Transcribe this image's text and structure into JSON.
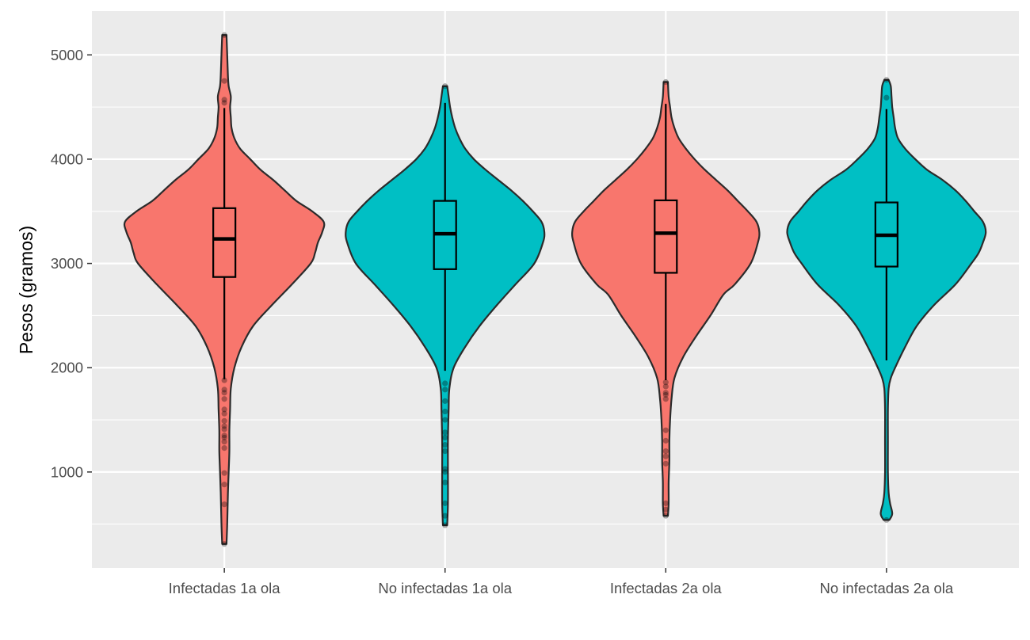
{
  "chart_data": {
    "type": "violin",
    "title": "",
    "xlabel": "",
    "ylabel": "Pesos (gramos)",
    "ylim": [
      80,
      5420
    ],
    "y_ticks": [
      1000,
      2000,
      3000,
      4000,
      5000
    ],
    "grid": true,
    "legend": "none",
    "colors": {
      "infected": "#F8766D",
      "not_infected": "#00BFC4",
      "panel": "#EBEBEB",
      "grid": "#FFFFFF"
    },
    "categories": [
      "Infectadas 1a ola",
      "No infectadas 1a ola",
      "Infectadas 2a ola",
      "No infectadas 2a ola"
    ],
    "groups": [
      {
        "name": "Infectadas 1a ola",
        "color": "#F8766D",
        "min": 310,
        "max": 5190,
        "box": {
          "q1": 2870,
          "median": 3235,
          "q3": 3530,
          "whisker_low": 1890,
          "whisker_high": 4490
        },
        "density": [
          [
            310,
            3
          ],
          [
            500,
            4
          ],
          [
            800,
            5
          ],
          [
            1000,
            6
          ],
          [
            1200,
            7
          ],
          [
            1400,
            7
          ],
          [
            1600,
            8
          ],
          [
            1800,
            9
          ],
          [
            2000,
            14
          ],
          [
            2200,
            24
          ],
          [
            2400,
            40
          ],
          [
            2600,
            66
          ],
          [
            2800,
            94
          ],
          [
            3000,
            120
          ],
          [
            3100,
            126
          ],
          [
            3200,
            130
          ],
          [
            3300,
            136
          ],
          [
            3400,
            138
          ],
          [
            3500,
            122
          ],
          [
            3600,
            100
          ],
          [
            3700,
            84
          ],
          [
            3800,
            68
          ],
          [
            3900,
            50
          ],
          [
            4000,
            36
          ],
          [
            4100,
            22
          ],
          [
            4200,
            14
          ],
          [
            4300,
            10
          ],
          [
            4400,
            9
          ],
          [
            4500,
            8
          ],
          [
            4600,
            9
          ],
          [
            4700,
            6
          ],
          [
            4800,
            5
          ],
          [
            5000,
            4
          ],
          [
            5190,
            3
          ]
        ],
        "outliers": [
          310,
          690,
          880,
          990,
          1230,
          1290,
          1330,
          1350,
          1410,
          1440,
          1490,
          1560,
          1600,
          1700,
          1760,
          1790,
          1880,
          4540,
          4570,
          4750,
          5190
        ]
      },
      {
        "name": "No infectadas 1a ola",
        "color": "#00BFC4",
        "min": 490,
        "max": 4700,
        "box": {
          "q1": 2945,
          "median": 3285,
          "q3": 3600,
          "whisker_low": 1970,
          "whisker_high": 4540
        },
        "density": [
          [
            490,
            3
          ],
          [
            700,
            4
          ],
          [
            1000,
            4
          ],
          [
            1300,
            4
          ],
          [
            1600,
            5
          ],
          [
            1800,
            6
          ],
          [
            2000,
            12
          ],
          [
            2200,
            28
          ],
          [
            2400,
            48
          ],
          [
            2600,
            72
          ],
          [
            2800,
            98
          ],
          [
            3000,
            124
          ],
          [
            3200,
            136
          ],
          [
            3300,
            138
          ],
          [
            3400,
            134
          ],
          [
            3500,
            122
          ],
          [
            3600,
            108
          ],
          [
            3700,
            92
          ],
          [
            3800,
            74
          ],
          [
            3900,
            56
          ],
          [
            4000,
            40
          ],
          [
            4100,
            28
          ],
          [
            4200,
            20
          ],
          [
            4300,
            14
          ],
          [
            4400,
            10
          ],
          [
            4500,
            7
          ],
          [
            4600,
            5
          ],
          [
            4700,
            3
          ]
        ],
        "outliers": [
          490,
          580,
          700,
          900,
          1000,
          1030,
          1200,
          1260,
          1330,
          1380,
          1500,
          1580,
          1680,
          1790,
          1850,
          4700
        ]
      },
      {
        "name": "Infectadas 2a ola",
        "color": "#F8766D",
        "min": 580,
        "max": 4740,
        "box": {
          "q1": 2910,
          "median": 3290,
          "q3": 3605,
          "whisker_low": 1880,
          "whisker_high": 4530
        },
        "density": [
          [
            580,
            3
          ],
          [
            700,
            4
          ],
          [
            900,
            4
          ],
          [
            1100,
            5
          ],
          [
            1300,
            5
          ],
          [
            1500,
            6
          ],
          [
            1700,
            8
          ],
          [
            1900,
            12
          ],
          [
            2100,
            24
          ],
          [
            2300,
            42
          ],
          [
            2500,
            62
          ],
          [
            2700,
            80
          ],
          [
            2800,
            96
          ],
          [
            3000,
            118
          ],
          [
            3200,
            128
          ],
          [
            3300,
            130
          ],
          [
            3400,
            126
          ],
          [
            3500,
            114
          ],
          [
            3600,
            100
          ],
          [
            3700,
            86
          ],
          [
            3800,
            70
          ],
          [
            3900,
            54
          ],
          [
            4000,
            40
          ],
          [
            4100,
            28
          ],
          [
            4200,
            18
          ],
          [
            4300,
            12
          ],
          [
            4400,
            8
          ],
          [
            4500,
            6
          ],
          [
            4600,
            4
          ],
          [
            4740,
            3
          ]
        ],
        "outliers": [
          580,
          640,
          700,
          1080,
          1150,
          1200,
          1300,
          1400,
          1700,
          1740,
          1760,
          1820,
          1860,
          4740
        ]
      },
      {
        "name": "No infectadas 2a ola",
        "color": "#00BFC4",
        "min": 540,
        "max": 4760,
        "box": {
          "q1": 2970,
          "median": 3270,
          "q3": 3585,
          "whisker_low": 2070,
          "whisker_high": 4480
        },
        "density": [
          [
            540,
            4
          ],
          [
            600,
            8
          ],
          [
            700,
            5
          ],
          [
            800,
            3
          ],
          [
            1000,
            2
          ],
          [
            1300,
            2
          ],
          [
            1600,
            2
          ],
          [
            1800,
            3
          ],
          [
            1900,
            6
          ],
          [
            2000,
            12
          ],
          [
            2200,
            26
          ],
          [
            2400,
            42
          ],
          [
            2600,
            66
          ],
          [
            2800,
            96
          ],
          [
            3000,
            118
          ],
          [
            3100,
            128
          ],
          [
            3200,
            134
          ],
          [
            3300,
            138
          ],
          [
            3400,
            134
          ],
          [
            3500,
            122
          ],
          [
            3600,
            110
          ],
          [
            3700,
            96
          ],
          [
            3800,
            78
          ],
          [
            3900,
            56
          ],
          [
            4000,
            40
          ],
          [
            4100,
            26
          ],
          [
            4200,
            16
          ],
          [
            4300,
            12
          ],
          [
            4400,
            10
          ],
          [
            4500,
            8
          ],
          [
            4600,
            7
          ],
          [
            4700,
            6
          ],
          [
            4760,
            3
          ]
        ],
        "outliers": [
          540,
          4590,
          4760
        ]
      }
    ]
  }
}
